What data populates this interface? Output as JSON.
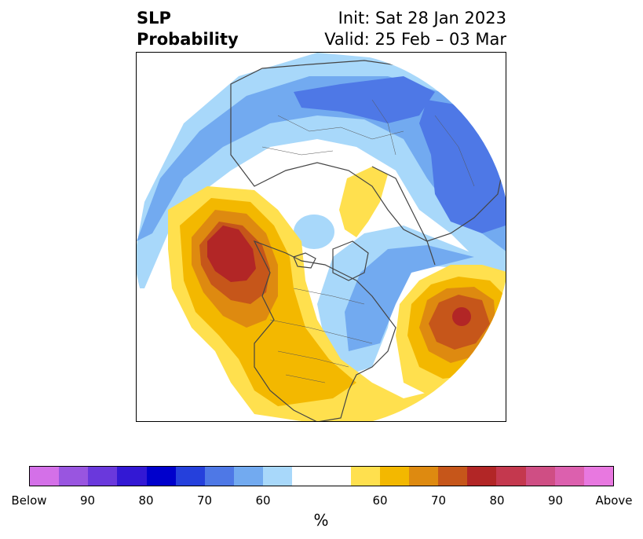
{
  "title": {
    "left_lines": [
      "SLP",
      "Probability"
    ],
    "right_lines": [
      "Init: Sat 28 Jan 2023",
      "Valid: 25 Feb – 03 Mar"
    ]
  },
  "map": {
    "projection": "north-polar-stereographic",
    "background_color": "#ffffff",
    "land_outline_color": "#444444"
  },
  "colorbar": {
    "unit": "%",
    "segments": [
      {
        "color": "#d470e8",
        "width": "narrow"
      },
      {
        "color": "#9955e0",
        "width": "narrow"
      },
      {
        "color": "#6a38dc",
        "width": "narrow"
      },
      {
        "color": "#3318d4",
        "width": "narrow"
      },
      {
        "color": "#0000cc",
        "width": "narrow"
      },
      {
        "color": "#2540dc",
        "width": "narrow"
      },
      {
        "color": "#4e78e6",
        "width": "narrow"
      },
      {
        "color": "#72aaf0",
        "width": "narrow"
      },
      {
        "color": "#a8d8fa",
        "width": "narrow"
      },
      {
        "color": "#ffffff",
        "width": "wide"
      },
      {
        "color": "#ffe04e",
        "width": "narrow"
      },
      {
        "color": "#f3b800",
        "width": "narrow"
      },
      {
        "color": "#de8a10",
        "width": "narrow"
      },
      {
        "color": "#c6561a",
        "width": "narrow"
      },
      {
        "color": "#b22626",
        "width": "narrow"
      },
      {
        "color": "#c4384e",
        "width": "narrow"
      },
      {
        "color": "#cf4e84",
        "width": "narrow"
      },
      {
        "color": "#dc60ae",
        "width": "narrow"
      },
      {
        "color": "#e878e0",
        "width": "narrow"
      }
    ],
    "tick_labels": [
      "Below",
      "90",
      "80",
      "70",
      "60",
      "60",
      "70",
      "80",
      "90",
      "Above"
    ]
  }
}
